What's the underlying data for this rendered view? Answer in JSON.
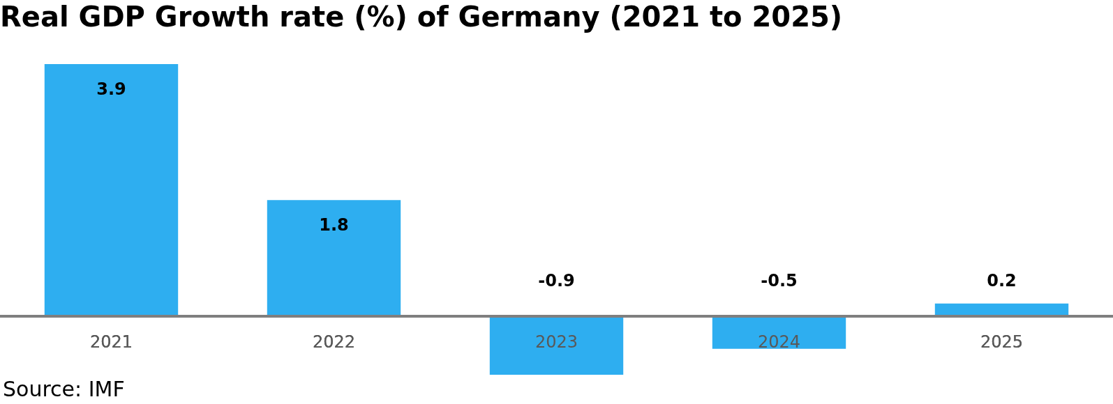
{
  "chart_data": {
    "type": "bar",
    "title": "Real GDP Growth rate (%) of Germany (2021 to 2025)",
    "categories": [
      "2021",
      "2022",
      "2023",
      "2024",
      "2025"
    ],
    "values": [
      3.9,
      1.8,
      -0.9,
      -0.5,
      0.2
    ],
    "color": "#2eaef0",
    "data_labels": true,
    "grid": false,
    "legend": false,
    "annotations": [
      "Source: IMF"
    ]
  }
}
